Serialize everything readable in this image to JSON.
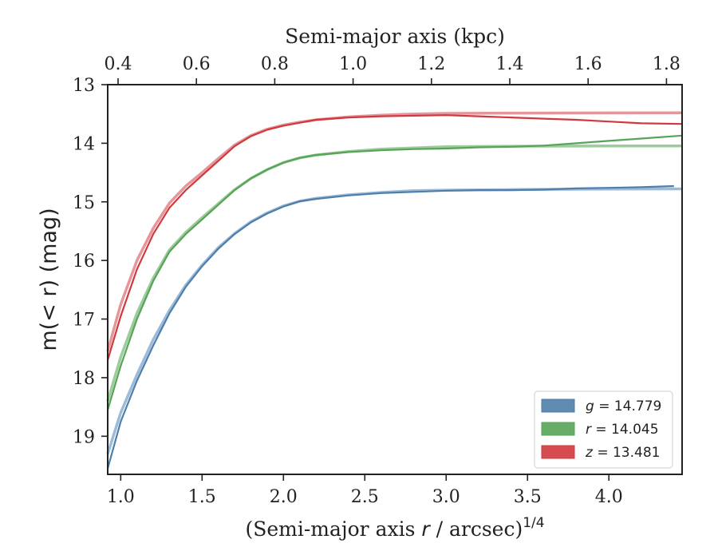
{
  "chart_data": {
    "type": "line",
    "xlabel_prefix": "(Semi-major axis ",
    "xlabel_var": "r",
    "xlabel_mid": " / arcsec)",
    "xlabel_exp": "1/4",
    "x2label": "Semi-major axis (kpc)",
    "ylabel": "m(< r) (mag)",
    "xlim": [
      0.92,
      4.45
    ],
    "ylim": [
      19.65,
      13.0
    ],
    "y_inverted": true,
    "xticks": [
      "1.0",
      "1.5",
      "2.0",
      "2.5",
      "3.0",
      "3.5",
      "4.0"
    ],
    "xtick_values": [
      1.0,
      1.5,
      2.0,
      2.5,
      3.0,
      3.5,
      4.0
    ],
    "x2ticks": [
      "0.4",
      "0.6",
      "0.8",
      "1.0",
      "1.2",
      "1.4",
      "1.6",
      "1.8"
    ],
    "yticks": [
      "13",
      "14",
      "15",
      "16",
      "17",
      "18",
      "19"
    ],
    "ytick_values": [
      13,
      14,
      15,
      16,
      17,
      18,
      19
    ],
    "legend_position": "lower-right",
    "grid": false,
    "series": [
      {
        "name": "g = 14.779",
        "label_var": "g",
        "label_value": "14.779",
        "color": "#4e7eaa",
        "x": [
          0.92,
          1.0,
          1.1,
          1.2,
          1.3,
          1.4,
          1.5,
          1.6,
          1.7,
          1.8,
          1.9,
          2.0,
          2.1,
          2.2,
          2.4,
          2.6,
          2.8,
          3.0,
          3.2,
          3.4,
          3.6,
          3.8,
          4.0,
          4.2,
          4.4
        ],
        "y": [
          19.55,
          18.75,
          18.05,
          17.45,
          16.9,
          16.45,
          16.1,
          15.8,
          15.55,
          15.35,
          15.2,
          15.08,
          14.99,
          14.95,
          14.89,
          14.85,
          14.83,
          14.81,
          14.8,
          14.8,
          14.79,
          14.77,
          14.76,
          14.75,
          14.73
        ]
      },
      {
        "name": "r = 14.045",
        "label_var": "r",
        "label_value": "14.045",
        "color": "#57a357",
        "x": [
          0.92,
          1.0,
          1.1,
          1.2,
          1.3,
          1.4,
          1.5,
          1.6,
          1.7,
          1.8,
          1.9,
          2.0,
          2.1,
          2.2,
          2.4,
          2.6,
          2.8,
          3.0,
          3.2,
          3.4,
          3.6,
          3.8,
          4.0,
          4.2,
          4.45
        ],
        "y": [
          18.55,
          17.8,
          17.0,
          16.35,
          15.85,
          15.55,
          15.3,
          15.05,
          14.8,
          14.6,
          14.45,
          14.33,
          14.25,
          14.2,
          14.15,
          14.12,
          14.1,
          14.09,
          14.07,
          14.06,
          14.04,
          14.0,
          13.96,
          13.92,
          13.87
        ]
      },
      {
        "name": "z = 13.481",
        "label_var": "z",
        "label_value": "13.481",
        "color": "#d0393d",
        "x": [
          0.92,
          1.0,
          1.1,
          1.2,
          1.3,
          1.4,
          1.5,
          1.6,
          1.7,
          1.8,
          1.9,
          2.0,
          2.1,
          2.2,
          2.4,
          2.6,
          2.8,
          3.0,
          3.2,
          3.4,
          3.6,
          3.8,
          4.0,
          4.2,
          4.45
        ],
        "y": [
          17.7,
          16.95,
          16.15,
          15.55,
          15.1,
          14.8,
          14.55,
          14.3,
          14.05,
          13.88,
          13.77,
          13.7,
          13.65,
          13.6,
          13.56,
          13.54,
          13.53,
          13.52,
          13.54,
          13.56,
          13.58,
          13.6,
          13.63,
          13.66,
          13.67
        ]
      }
    ],
    "fits": [
      {
        "color": "#e6969a",
        "asymptote": 13.481,
        "x": [
          0.92,
          1.0,
          1.1,
          1.2,
          1.3,
          1.4,
          1.5,
          1.6,
          1.7,
          1.8,
          1.9,
          2.0,
          2.1,
          2.2,
          2.4,
          2.6,
          2.8,
          3.0,
          3.4,
          4.0,
          4.45
        ],
        "y": [
          17.55,
          16.75,
          16.0,
          15.45,
          15.02,
          14.73,
          14.5,
          14.26,
          14.03,
          13.87,
          13.76,
          13.69,
          13.64,
          13.6,
          13.55,
          13.52,
          13.5,
          13.49,
          13.485,
          13.482,
          13.481
        ]
      },
      {
        "color": "#9ccb9c",
        "asymptote": 14.045,
        "x": [
          0.92,
          1.0,
          1.1,
          1.2,
          1.3,
          1.4,
          1.5,
          1.6,
          1.7,
          1.8,
          1.9,
          2.0,
          2.1,
          2.2,
          2.4,
          2.6,
          2.8,
          3.0,
          3.4,
          4.0,
          4.45
        ],
        "y": [
          18.4,
          17.65,
          16.9,
          16.3,
          15.82,
          15.52,
          15.27,
          15.03,
          14.79,
          14.6,
          14.45,
          14.33,
          14.25,
          14.2,
          14.14,
          14.1,
          14.08,
          14.06,
          14.05,
          14.046,
          14.045
        ]
      },
      {
        "color": "#9dbad8",
        "asymptote": 14.779,
        "x": [
          0.92,
          1.0,
          1.1,
          1.2,
          1.3,
          1.4,
          1.5,
          1.6,
          1.7,
          1.8,
          1.9,
          2.0,
          2.1,
          2.2,
          2.4,
          2.6,
          2.8,
          3.0,
          3.4,
          4.0,
          4.45
        ],
        "y": [
          19.3,
          18.6,
          17.95,
          17.35,
          16.85,
          16.42,
          16.08,
          15.78,
          15.54,
          15.34,
          15.19,
          15.07,
          14.99,
          14.94,
          14.88,
          14.84,
          14.81,
          14.8,
          14.79,
          14.782,
          14.779
        ]
      }
    ]
  }
}
